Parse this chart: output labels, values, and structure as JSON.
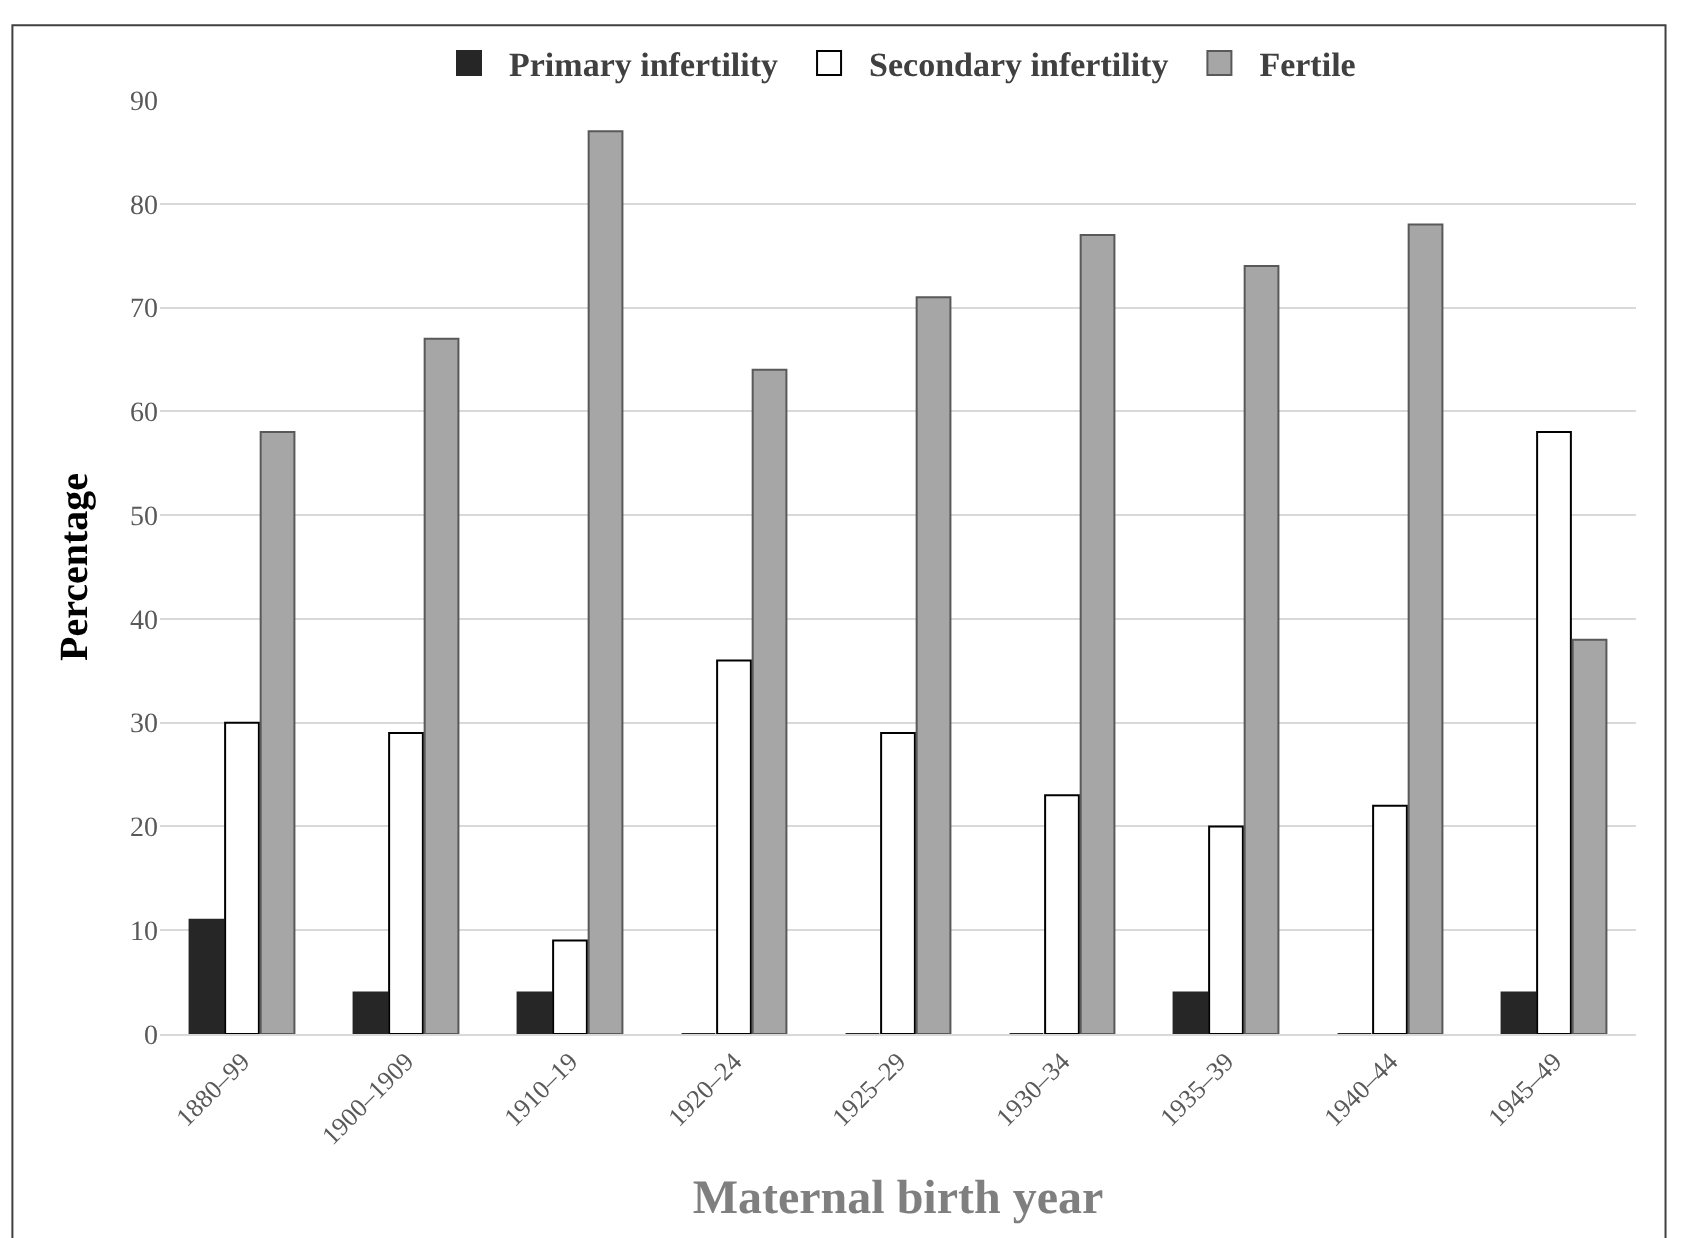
{
  "chart_data": {
    "type": "bar",
    "xlabel": "Maternal birth year",
    "ylabel": "Percentage",
    "categories": [
      "1880–99",
      "1900–1909",
      "1910–19",
      "1920–24",
      "1925–29",
      "1930–34",
      "1935–39",
      "1940–44",
      "1945–49"
    ],
    "series": [
      {
        "name": "Primary infertility",
        "color": "#262626",
        "values": [
          11,
          4,
          4,
          0,
          0,
          0,
          4,
          0,
          4
        ]
      },
      {
        "name": "Secondary infertility",
        "color": "#ffffff",
        "values": [
          30,
          29,
          9,
          36,
          29,
          23,
          20,
          22,
          58
        ]
      },
      {
        "name": "Fertile",
        "color": "#a6a6a6",
        "values": [
          58,
          67,
          87,
          64,
          71,
          77,
          74,
          78,
          38
        ]
      }
    ],
    "ylim": [
      0,
      90
    ],
    "yticks": [
      0,
      10,
      20,
      30,
      40,
      50,
      60,
      70,
      80,
      90
    ],
    "grid": "y",
    "legend": "top"
  }
}
